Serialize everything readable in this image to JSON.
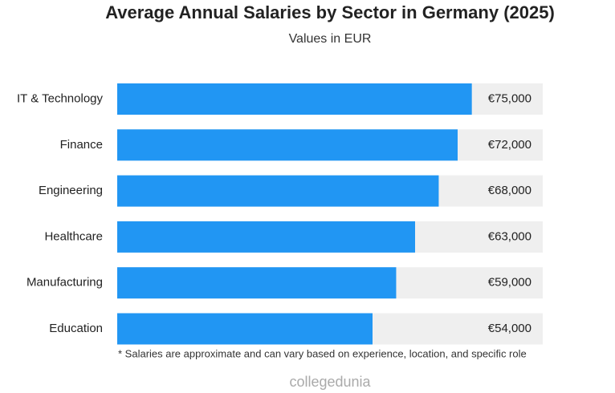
{
  "chart_data": {
    "type": "bar",
    "orientation": "horizontal",
    "title": "Average Annual Salaries by Sector in Germany (2025)",
    "subtitle": "Values in EUR",
    "categories": [
      "IT & Technology",
      "Finance",
      "Engineering",
      "Healthcare",
      "Manufacturing",
      "Education"
    ],
    "values": [
      75000,
      72000,
      68000,
      63000,
      59000,
      54000
    ],
    "value_labels": [
      "€75,000",
      "€72,000",
      "€68,000",
      "€63,000",
      "€59,000",
      "€54,000"
    ],
    "color": "#2196f3",
    "xlim": [
      0,
      90000
    ],
    "footnote": "* Salaries are approximate and can vary based on experience, location, and specific role",
    "watermark": "collegedunia"
  }
}
